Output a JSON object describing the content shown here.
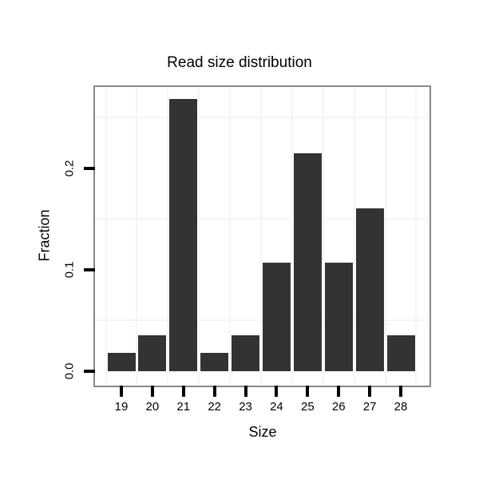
{
  "chart_data": {
    "type": "bar",
    "title": "Read size distribution",
    "xlabel": "Size",
    "ylabel": "Fraction",
    "categories": [
      "19",
      "20",
      "21",
      "22",
      "23",
      "24",
      "25",
      "26",
      "27",
      "28"
    ],
    "values": [
      0.0179,
      0.0357,
      0.2679,
      0.0179,
      0.0357,
      0.1071,
      0.2143,
      0.1071,
      0.1607,
      0.0357
    ],
    "y_ticks": [
      "0.0",
      "0.1",
      "0.2"
    ],
    "y_tick_values": [
      0,
      0.1,
      0.2
    ],
    "minor_gridlines_y": [
      0.05,
      0.15,
      0.25
    ],
    "ylim": [
      -0.013,
      0.281
    ],
    "grid": "minor gridlines only",
    "legend_position": "none",
    "colors": {
      "bar": "#333333",
      "panel_border": "#888888",
      "gridline": "#f5f5f5",
      "tick": "#000000",
      "text": "#000000",
      "background": "#ffffff"
    }
  }
}
